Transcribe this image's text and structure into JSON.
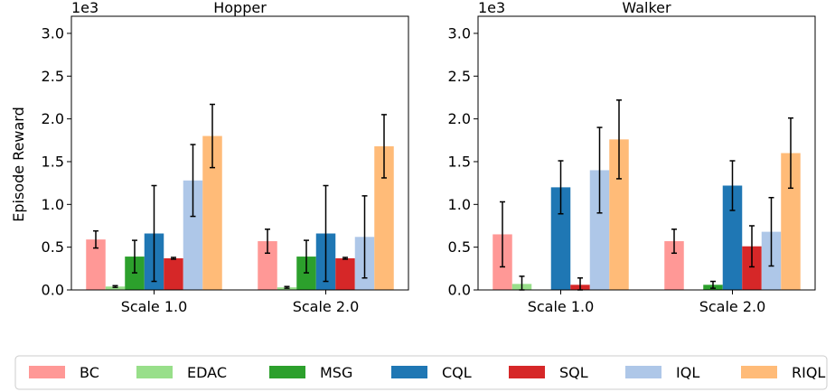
{
  "figure": {
    "ylabel": "Episode Reward"
  },
  "legend": [
    {
      "name": "BC",
      "color": "#ff9896"
    },
    {
      "name": "EDAC",
      "color": "#98df8a"
    },
    {
      "name": "MSG",
      "color": "#2ca02c"
    },
    {
      "name": "CQL",
      "color": "#1f77b4"
    },
    {
      "name": "SQL",
      "color": "#d62728"
    },
    {
      "name": "IQL",
      "color": "#aec7e8"
    },
    {
      "name": "RIQL",
      "color": "#ffbb78"
    }
  ],
  "chart_data": [
    {
      "type": "bar",
      "title": "Hopper",
      "ylabel": "Episode Reward",
      "y_multiplier": "1e3",
      "ylim": [
        0,
        3.2
      ],
      "yticks": [
        0.0,
        0.5,
        1.0,
        1.5,
        2.0,
        2.5,
        3.0
      ],
      "ytick_labels": [
        "0.0",
        "0.5",
        "1.0",
        "1.5",
        "2.0",
        "2.5",
        "3.0"
      ],
      "categories": [
        "Scale 1.0",
        "Scale 2.0"
      ],
      "series": [
        {
          "name": "BC",
          "values": [
            0.59,
            0.57
          ],
          "errors": [
            0.1,
            0.14
          ]
        },
        {
          "name": "EDAC",
          "values": [
            0.04,
            0.03
          ],
          "errors": [
            0.01,
            0.01
          ]
        },
        {
          "name": "MSG",
          "values": [
            0.39,
            0.39
          ],
          "errors": [
            0.19,
            0.19
          ]
        },
        {
          "name": "CQL",
          "values": [
            0.66,
            0.66
          ],
          "errors": [
            0.56,
            0.56
          ]
        },
        {
          "name": "SQL",
          "values": [
            0.37,
            0.37
          ],
          "errors": [
            0.01,
            0.01
          ]
        },
        {
          "name": "IQL",
          "values": [
            1.28,
            0.62
          ],
          "errors": [
            0.42,
            0.48
          ]
        },
        {
          "name": "RIQL",
          "values": [
            1.8,
            1.68
          ],
          "errors": [
            0.37,
            0.37
          ]
        }
      ]
    },
    {
      "type": "bar",
      "title": "Walker",
      "ylabel": "",
      "y_multiplier": "1e3",
      "ylim": [
        0,
        3.2
      ],
      "yticks": [
        0.0,
        0.5,
        1.0,
        1.5,
        2.0,
        2.5,
        3.0
      ],
      "ytick_labels": [
        "0.0",
        "0.5",
        "1.0",
        "1.5",
        "2.0",
        "2.5",
        "3.0"
      ],
      "categories": [
        "Scale 1.0",
        "Scale 2.0"
      ],
      "series": [
        {
          "name": "BC",
          "values": [
            0.65,
            0.57
          ],
          "errors": [
            0.38,
            0.14
          ]
        },
        {
          "name": "EDAC",
          "values": [
            0.07,
            0.0
          ],
          "errors": [
            0.09,
            0.0
          ]
        },
        {
          "name": "MSG",
          "values": [
            0.0,
            0.06
          ],
          "errors": [
            0.0,
            0.04
          ]
        },
        {
          "name": "CQL",
          "values": [
            1.2,
            1.22
          ],
          "errors": [
            0.31,
            0.29
          ]
        },
        {
          "name": "SQL",
          "values": [
            0.06,
            0.51
          ],
          "errors": [
            0.08,
            0.24
          ]
        },
        {
          "name": "IQL",
          "values": [
            1.4,
            0.68
          ],
          "errors": [
            0.5,
            0.4
          ]
        },
        {
          "name": "RIQL",
          "values": [
            1.76,
            1.6
          ],
          "errors": [
            0.46,
            0.41
          ]
        }
      ]
    }
  ]
}
